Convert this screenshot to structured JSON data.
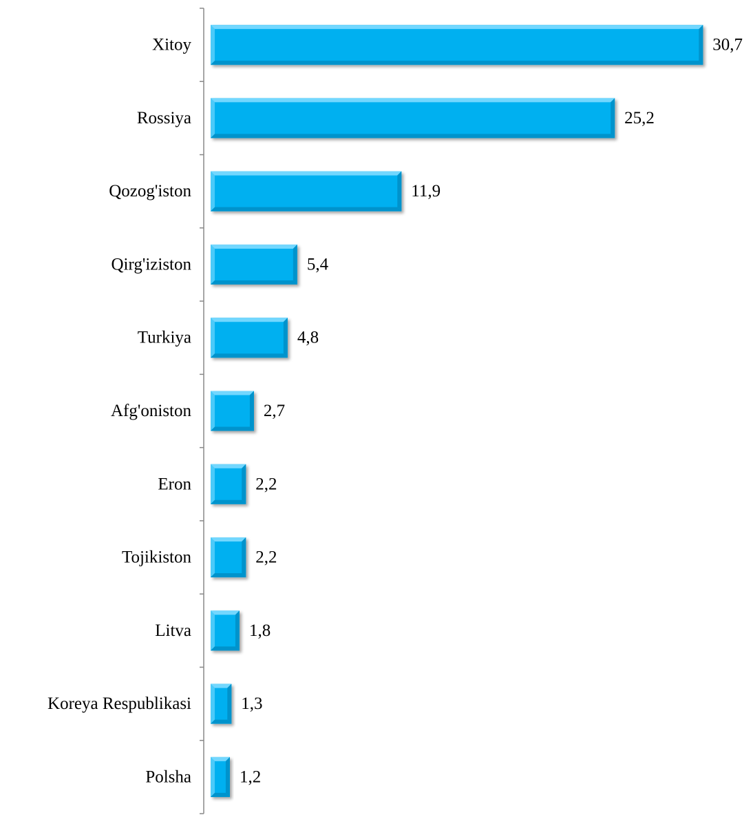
{
  "chart_data": {
    "type": "bar",
    "orientation": "horizontal",
    "title": "",
    "xlabel": "",
    "ylabel": "",
    "categories": [
      "Xitoy",
      "Rossiya",
      "Qozog'iston",
      "Qirg'iziston",
      "Turkiya",
      "Afg'oniston",
      "Eron",
      "Tojikiston",
      "Litva",
      "Koreya Respublikasi",
      "Polsha"
    ],
    "values": [
      30.7,
      25.2,
      11.9,
      5.4,
      4.8,
      2.7,
      2.2,
      2.2,
      1.8,
      1.3,
      1.2
    ],
    "value_labels": [
      "30,7",
      "25,2",
      "11,9",
      "5,4",
      "4,8",
      "2,7",
      "2,2",
      "2,2",
      "1,8",
      "1,3",
      "1,2"
    ],
    "grid": false,
    "legend": "none",
    "colors": {
      "bar": "#00b0f0",
      "bar_highlight": "#7fdcff",
      "bar_shadow": "#0090c8",
      "axis": "#888888"
    }
  }
}
